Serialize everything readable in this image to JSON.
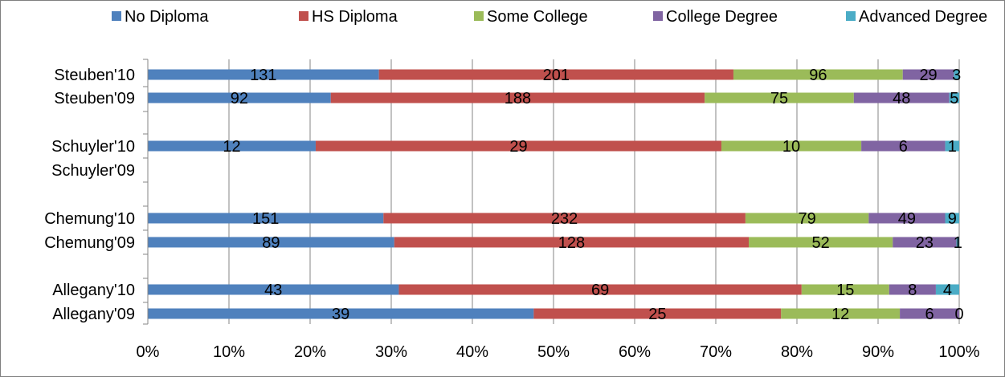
{
  "chart_data": {
    "type": "bar",
    "orientation": "horizontal",
    "stacked": "percent",
    "categories": [
      "Steuben'10",
      "Steuben'09",
      "Schuyler'10",
      "Schuyler'09",
      "Chemung'10",
      "Chemung'09",
      "Allegany'10",
      "Allegany'09"
    ],
    "series": [
      {
        "name": "No Diploma",
        "color": "#4F81BD",
        "values": [
          131,
          92,
          12,
          null,
          151,
          89,
          43,
          39
        ]
      },
      {
        "name": "HS Diploma",
        "color": "#C0504D",
        "values": [
          201,
          188,
          29,
          null,
          232,
          128,
          69,
          25
        ]
      },
      {
        "name": "Some College",
        "color": "#9BBB59",
        "values": [
          96,
          75,
          10,
          null,
          79,
          52,
          15,
          12
        ]
      },
      {
        "name": "College Degree",
        "color": "#8064A2",
        "values": [
          29,
          48,
          6,
          null,
          49,
          23,
          8,
          6
        ]
      },
      {
        "name": "Advanced Degree",
        "color": "#4BACC6",
        "values": [
          3,
          5,
          1,
          null,
          9,
          1,
          4,
          0
        ]
      }
    ],
    "xlim": [
      0,
      100
    ],
    "x_ticks": [
      "0%",
      "10%",
      "20%",
      "30%",
      "40%",
      "50%",
      "60%",
      "70%",
      "80%",
      "90%",
      "100%"
    ],
    "grid": "vertical",
    "legend": "top"
  }
}
